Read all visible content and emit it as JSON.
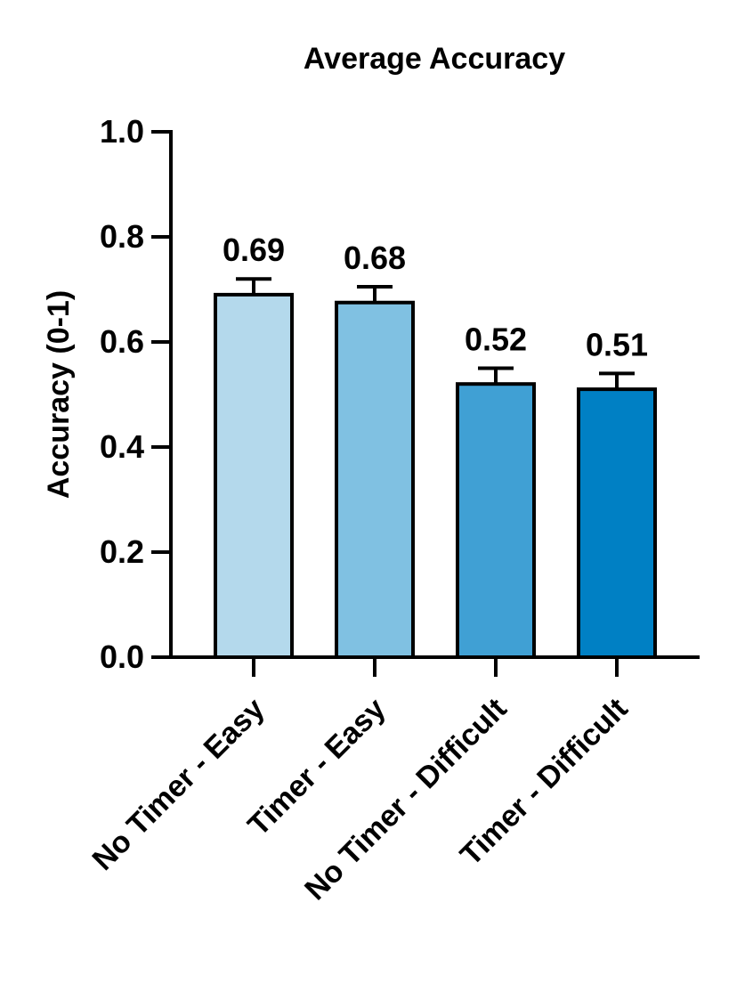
{
  "chart_data": {
    "type": "bar",
    "title": "Average Accuracy",
    "xlabel": "",
    "ylabel": "Accuracy (0-1)",
    "ylim": [
      0,
      1.0
    ],
    "yticks": [
      "0.0",
      "0.2",
      "0.4",
      "0.6",
      "0.8",
      "1.0"
    ],
    "grid": false,
    "legend": "none",
    "categories": [
      "No Timer - Easy",
      "Timer - Easy",
      "No Timer - Difficult",
      "Timer - Difficult"
    ],
    "values": [
      0.69,
      0.675,
      0.52,
      0.51
    ],
    "value_labels": [
      "0.69",
      "0.68",
      "0.52",
      "0.51"
    ],
    "error_upper": [
      0.72,
      0.705,
      0.55,
      0.54
    ],
    "bar_colors": [
      "#b4d9ec",
      "#80c1e2",
      "#40a0d4",
      "#0080c4"
    ]
  }
}
